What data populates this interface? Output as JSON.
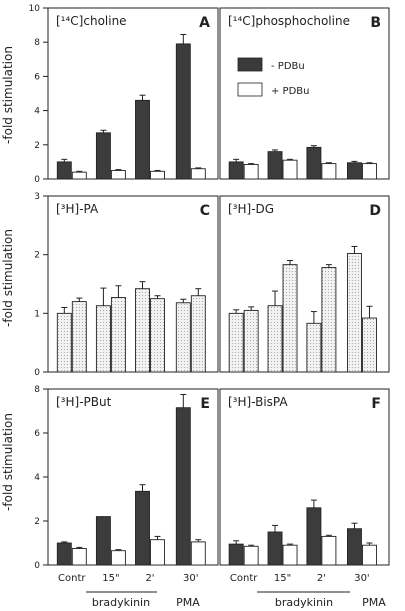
{
  "figure": {
    "ylabel": "-fold stimulation",
    "x_categories": [
      "Contr",
      "15\"",
      "2'",
      "30'"
    ],
    "x_groups": [
      {
        "label": "bradykinin",
        "covers": [
          "15\"",
          "2'"
        ]
      },
      {
        "label": "PMA",
        "covers": [
          "30'"
        ]
      }
    ],
    "legend": [
      {
        "name": "- PDBu",
        "fill": "dark"
      },
      {
        "name": "+ PDBu",
        "fill": "white"
      }
    ]
  },
  "chart_data": [
    {
      "type": "bar",
      "panel": "A",
      "title": "[¹⁴C]choline",
      "categories": [
        "Contr",
        "15\"",
        "2'",
        "30'"
      ],
      "ylim": [
        0,
        10
      ],
      "yticks": [
        0,
        2,
        4,
        6,
        8,
        10
      ],
      "series": [
        {
          "name": "- PDBu",
          "values": [
            1.0,
            2.7,
            4.6,
            7.9
          ],
          "errors": [
            0.15,
            0.15,
            0.3,
            0.55
          ]
        },
        {
          "name": "+ PDBu",
          "values": [
            0.4,
            0.5,
            0.45,
            0.6
          ],
          "errors": [
            0.05,
            0.05,
            0.05,
            0.05
          ]
        }
      ]
    },
    {
      "type": "bar",
      "panel": "B",
      "title": "[¹⁴C]phosphocholine",
      "categories": [
        "Contr",
        "15\"",
        "2'",
        "30'"
      ],
      "ylim": [
        0,
        10
      ],
      "yticks": [
        0,
        2,
        4,
        6,
        8,
        10
      ],
      "series": [
        {
          "name": "- PDBu",
          "values": [
            1.0,
            1.6,
            1.85,
            0.95
          ],
          "errors": [
            0.15,
            0.1,
            0.1,
            0.08
          ]
        },
        {
          "name": "+ PDBu",
          "values": [
            0.85,
            1.1,
            0.9,
            0.9
          ],
          "errors": [
            0.05,
            0.05,
            0.05,
            0.05
          ]
        }
      ]
    },
    {
      "type": "bar",
      "panel": "C",
      "title": "[³H]-PA",
      "categories": [
        "Contr",
        "15\"",
        "2'",
        "30'"
      ],
      "ylim": [
        0,
        3
      ],
      "yticks": [
        0,
        1,
        2,
        3
      ],
      "series": [
        {
          "name": "- PDBu",
          "values": [
            1.0,
            1.13,
            1.42,
            1.18
          ],
          "errors": [
            0.1,
            0.3,
            0.12,
            0.06
          ]
        },
        {
          "name": "+ PDBu",
          "values": [
            1.2,
            1.27,
            1.25,
            1.3
          ],
          "errors": [
            0.06,
            0.2,
            0.05,
            0.12
          ]
        }
      ]
    },
    {
      "type": "bar",
      "panel": "D",
      "title": "[³H]-DG",
      "categories": [
        "Contr",
        "15\"",
        "2'",
        "30'"
      ],
      "ylim": [
        0,
        3
      ],
      "yticks": [
        0,
        1,
        2,
        3
      ],
      "series": [
        {
          "name": "- PDBu",
          "values": [
            1.0,
            1.13,
            0.83,
            2.02
          ],
          "errors": [
            0.06,
            0.25,
            0.2,
            0.12
          ]
        },
        {
          "name": "+ PDBu",
          "values": [
            1.05,
            1.83,
            1.78,
            0.92
          ],
          "errors": [
            0.06,
            0.07,
            0.05,
            0.2
          ]
        }
      ]
    },
    {
      "type": "bar",
      "panel": "E",
      "title": "[³H]-PBut",
      "categories": [
        "Contr",
        "15\"",
        "2'",
        "30'"
      ],
      "ylim": [
        0,
        8
      ],
      "yticks": [
        0,
        2,
        4,
        6,
        8
      ],
      "series": [
        {
          "name": "- PDBu",
          "values": [
            1.0,
            2.2,
            3.35,
            7.15
          ],
          "errors": [
            0.05,
            0.0,
            0.3,
            0.6
          ]
        },
        {
          "name": "+ PDBu",
          "values": [
            0.75,
            0.65,
            1.15,
            1.05
          ],
          "errors": [
            0.05,
            0.05,
            0.15,
            0.1
          ]
        }
      ]
    },
    {
      "type": "bar",
      "panel": "F",
      "title": "[³H]-BisPA",
      "categories": [
        "Contr",
        "15\"",
        "2'",
        "30'"
      ],
      "ylim": [
        0,
        8
      ],
      "yticks": [
        0,
        2,
        4,
        6,
        8
      ],
      "series": [
        {
          "name": "- PDBu",
          "values": [
            0.95,
            1.5,
            2.6,
            1.65
          ],
          "errors": [
            0.15,
            0.3,
            0.35,
            0.25
          ]
        },
        {
          "name": "+ PDBu",
          "values": [
            0.85,
            0.9,
            1.3,
            0.9
          ],
          "errors": [
            0.05,
            0.05,
            0.05,
            0.1
          ]
        }
      ]
    }
  ]
}
